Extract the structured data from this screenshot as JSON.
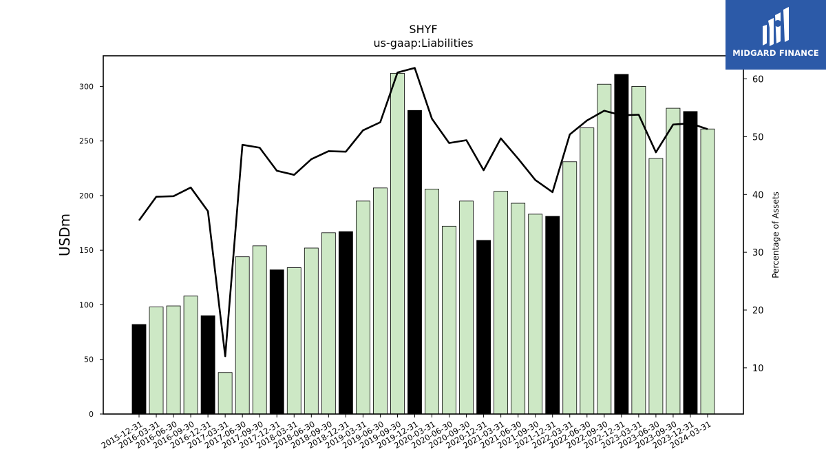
{
  "brand": {
    "name": "MIDGARD FINANCE",
    "background_color": "#2c5aa8",
    "icon": "midgard-logo-icon"
  },
  "chart_data": {
    "type": "bar",
    "title": "SHYF",
    "subtitle": "us-gaap:Liabilities",
    "ylabel": "USDm",
    "y2label": "Percentage of Assets",
    "ylim": [
      0,
      328
    ],
    "y2lim": [
      2,
      64
    ],
    "yticks": [
      0,
      50,
      100,
      150,
      200,
      250,
      300
    ],
    "y2ticks": [
      10,
      20,
      30,
      40,
      50,
      60
    ],
    "categories": [
      "2015-12-31",
      "2016-03-31",
      "2016-06-30",
      "2016-09-30",
      "2016-12-31",
      "2017-03-31",
      "2017-06-30",
      "2017-09-30",
      "2017-12-31",
      "2018-03-31",
      "2018-06-30",
      "2018-09-30",
      "2018-12-31",
      "2019-03-31",
      "2019-06-30",
      "2019-09-30",
      "2019-12-31",
      "2020-03-31",
      "2020-06-30",
      "2020-09-30",
      "2020-12-31",
      "2021-03-31",
      "2021-06-30",
      "2021-09-30",
      "2021-12-31",
      "2022-03-31",
      "2022-06-30",
      "2022-09-30",
      "2022-12-31",
      "2023-03-31",
      "2023-06-30",
      "2023-09-30",
      "2023-12-31",
      "2024-03-31"
    ],
    "series": [
      {
        "type": "bar",
        "values": [
          82,
          98,
          99,
          108,
          90,
          38,
          144,
          154,
          132,
          134,
          152,
          166,
          167,
          195,
          207,
          312,
          278,
          206,
          172,
          195,
          159,
          204,
          193,
          183,
          181,
          231,
          262,
          302,
          311,
          300,
          234,
          280,
          277,
          261
        ],
        "year_end": [
          true,
          false,
          false,
          false,
          true,
          false,
          false,
          false,
          true,
          false,
          false,
          false,
          true,
          false,
          false,
          false,
          true,
          false,
          false,
          false,
          true,
          false,
          false,
          false,
          true,
          false,
          false,
          false,
          true,
          false,
          false,
          false,
          true,
          false
        ]
      },
      {
        "type": "line",
        "axis": "right",
        "values": [
          35.5,
          39.6,
          39.7,
          41.2,
          37.1,
          12.0,
          48.6,
          48.1,
          44.1,
          43.4,
          46.1,
          47.5,
          47.4,
          51.1,
          52.5,
          61.1,
          61.9,
          53.1,
          48.9,
          49.4,
          44.2,
          49.7,
          46.2,
          42.5,
          40.4,
          50.4,
          52.8,
          54.5,
          53.7,
          53.8,
          47.3,
          52.1,
          52.3,
          51.3
        ]
      }
    ],
    "colors": {
      "bar_regular": "#cde8c5",
      "bar_year_end": "#000000",
      "bar_edge": "#000000",
      "line": "#000000"
    },
    "grid": false,
    "legend": "none"
  }
}
